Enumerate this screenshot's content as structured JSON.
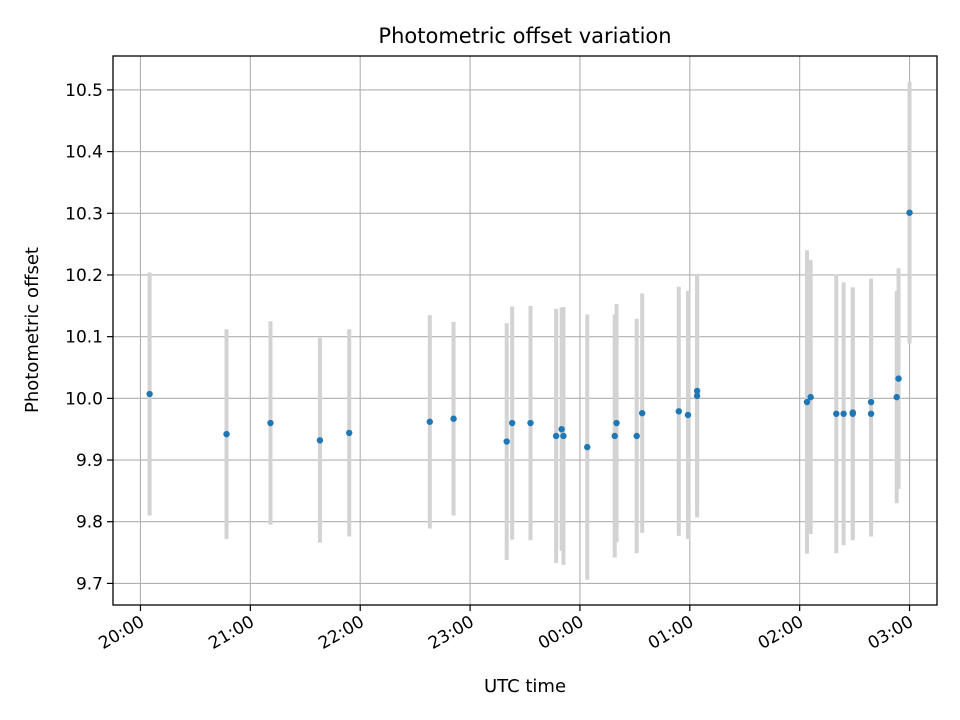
{
  "chart_data": {
    "type": "scatter",
    "title": "Photometric offset variation",
    "xlabel": "UTC time",
    "ylabel": "Photometric offset",
    "xlim": [
      "19:45",
      "03:15"
    ],
    "ylim": [
      9.665,
      10.555
    ],
    "grid": true,
    "x_ticks": [
      "20:00",
      "21:00",
      "22:00",
      "23:00",
      "00:00",
      "01:00",
      "02:00",
      "03:00"
    ],
    "y_ticks": [
      "9.7",
      "9.8",
      "9.9",
      "10.0",
      "10.1",
      "10.2",
      "10.3",
      "10.4",
      "10.5"
    ],
    "y_tick_values": [
      9.7,
      9.8,
      9.9,
      10.0,
      10.1,
      10.2,
      10.3,
      10.4,
      10.5
    ],
    "marker_color": "#1f77b4",
    "errorbar_color": "#d3d3d3",
    "points": [
      {
        "t": "20:05",
        "y": 10.007,
        "err": 0.197
      },
      {
        "t": "20:47",
        "y": 9.942,
        "err": 0.17
      },
      {
        "t": "21:11",
        "y": 9.96,
        "err": 0.165
      },
      {
        "t": "21:38",
        "y": 9.932,
        "err": 0.166
      },
      {
        "t": "21:54",
        "y": 9.944,
        "err": 0.168
      },
      {
        "t": "22:38",
        "y": 9.962,
        "err": 0.173
      },
      {
        "t": "22:51",
        "y": 9.967,
        "err": 0.157
      },
      {
        "t": "23:20",
        "y": 9.93,
        "err": 0.192
      },
      {
        "t": "23:23",
        "y": 9.96,
        "err": 0.189
      },
      {
        "t": "23:33",
        "y": 9.96,
        "err": 0.19
      },
      {
        "t": "23:47",
        "y": 9.939,
        "err": 0.206
      },
      {
        "t": "23:50",
        "y": 9.95,
        "err": 0.197
      },
      {
        "t": "23:51",
        "y": 9.939,
        "err": 0.209
      },
      {
        "t": "00:04",
        "y": 9.921,
        "err": 0.215
      },
      {
        "t": "00:19",
        "y": 9.939,
        "err": 0.197
      },
      {
        "t": "00:20",
        "y": 9.96,
        "err": 0.193
      },
      {
        "t": "00:31",
        "y": 9.939,
        "err": 0.19
      },
      {
        "t": "00:34",
        "y": 9.976,
        "err": 0.194
      },
      {
        "t": "00:54",
        "y": 9.979,
        "err": 0.202
      },
      {
        "t": "00:59",
        "y": 9.973,
        "err": 0.201
      },
      {
        "t": "01:04",
        "y": 10.012,
        "err": 0.19
      },
      {
        "t": "01:04",
        "y": 10.004,
        "err": 0.197
      },
      {
        "t": "02:04",
        "y": 9.994,
        "err": 0.246
      },
      {
        "t": "02:06",
        "y": 10.002,
        "err": 0.222
      },
      {
        "t": "02:20",
        "y": 9.975,
        "err": 0.226
      },
      {
        "t": "02:24",
        "y": 9.975,
        "err": 0.213
      },
      {
        "t": "02:29",
        "y": 9.975,
        "err": 0.205
      },
      {
        "t": "02:29",
        "y": 9.977,
        "err": 0.203
      },
      {
        "t": "02:39",
        "y": 9.994,
        "err": 0.2
      },
      {
        "t": "02:39",
        "y": 9.975,
        "err": 0.199
      },
      {
        "t": "02:53",
        "y": 10.002,
        "err": 0.172
      },
      {
        "t": "02:54",
        "y": 10.032,
        "err": 0.179
      },
      {
        "t": "03:00",
        "y": 10.301,
        "err": 0.212
      }
    ]
  }
}
